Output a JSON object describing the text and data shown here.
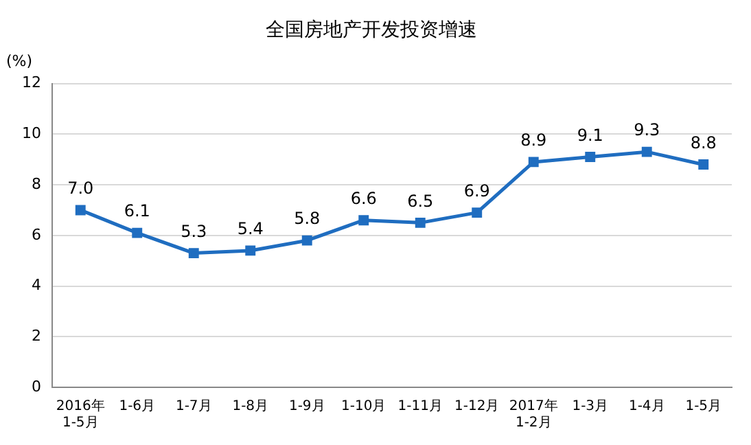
{
  "chart_data": {
    "type": "line",
    "title": "全国房地产开发投资增速",
    "ylabel": "(%)",
    "categories": [
      "2016年\n1-5月",
      "1-6月",
      "1-7月",
      "1-8月",
      "1-9月",
      "1-10月",
      "1-11月",
      "1-12月",
      "2017年\n1-2月",
      "1-3月",
      "1-4月",
      "1-5月"
    ],
    "series": [
      {
        "color": "#1f6dc0",
        "values": [
          7.0,
          6.1,
          5.3,
          5.4,
          5.8,
          6.6,
          6.5,
          6.9,
          8.9,
          9.1,
          9.3,
          8.8
        ],
        "value_labels": [
          "7.0",
          "6.1",
          "5.3",
          "5.4",
          "5.8",
          "6.6",
          "6.5",
          "6.9",
          "8.9",
          "9.1",
          "9.3",
          "8.8"
        ]
      }
    ],
    "ylim": [
      0,
      12
    ],
    "yticks": [
      0,
      2,
      4,
      6,
      8,
      10,
      12
    ],
    "grid": "y",
    "legend": false,
    "marker": "square",
    "line_style": "solid"
  }
}
